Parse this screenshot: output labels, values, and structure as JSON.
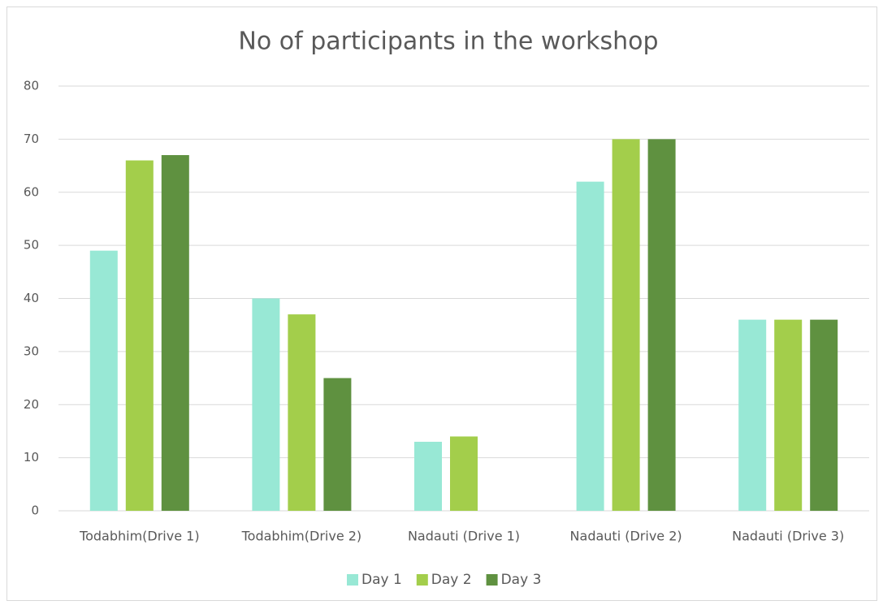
{
  "chart_data": {
    "type": "bar",
    "title": "No of participants in the workshop",
    "categories": [
      "Todabhim(Drive 1)",
      "Todabhim(Drive 2)",
      "Nadauti (Drive 1)",
      "Nadauti (Drive 2)",
      "Nadauti (Drive 3)"
    ],
    "series": [
      {
        "name": "Day 1",
        "color": "#98e8d5",
        "values": [
          49,
          40,
          13,
          62,
          36
        ]
      },
      {
        "name": "Day 2",
        "color": "#a3ce4b",
        "values": [
          66,
          37,
          14,
          70,
          36
        ]
      },
      {
        "name": "Day 3",
        "color": "#5f9140",
        "values": [
          67,
          25,
          null,
          70,
          36
        ]
      }
    ],
    "ylim": [
      0,
      80
    ],
    "yticks": [
      0,
      10,
      20,
      30,
      40,
      50,
      60,
      70,
      80
    ],
    "grid": true,
    "legend": "bottom"
  }
}
